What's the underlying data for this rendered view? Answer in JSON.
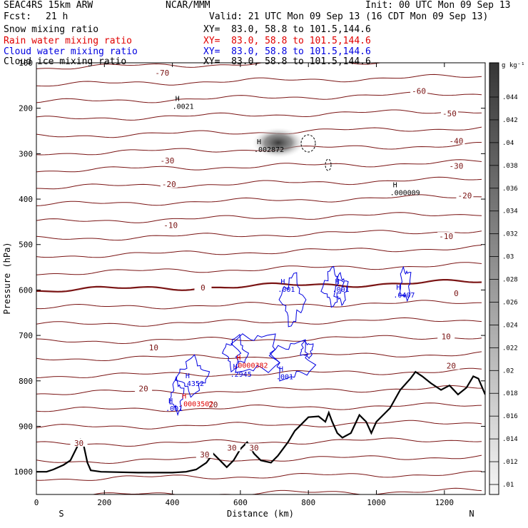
{
  "header": {
    "model": "SEAC4RS 15km ARW",
    "org": "NCAR/MMM",
    "init": "Init: 00 UTC Mon 09 Sep 13",
    "fcst_label": "Fcst:",
    "fcst_value": "21 h",
    "valid": "Valid: 21 UTC Mon 09 Sep 13 (16 CDT Mon 09 Sep 13)"
  },
  "fields": [
    {
      "name": "Snow mixing ratio",
      "xy": "XY=  83.0, 58.8 to 101.5,144.6",
      "color": "#000000"
    },
    {
      "name": "Rain water mixing ratio",
      "xy": "XY=  83.0, 58.8 to 101.5,144.6",
      "color": "#e00000"
    },
    {
      "name": "Cloud water mixing ratio",
      "xy": "XY=  83.0, 58.8 to 101.5,144.6",
      "color": "#0000e0"
    },
    {
      "name": "Cloud ice mixing ratio",
      "xy": "XY=  83.0, 58.8 to 101.5,144.6",
      "color": "#000000"
    }
  ],
  "chart_data": {
    "type": "contour_cross_section",
    "xlabel": "Distance (km)",
    "ylabel": "Pressure (hPa)",
    "xlim": [
      0,
      1320
    ],
    "ylim": [
      1050,
      100
    ],
    "x_ticks": [
      0,
      200,
      400,
      600,
      800,
      1000,
      1200
    ],
    "y_ticks": [
      1000,
      900,
      800,
      700,
      600,
      500,
      400,
      300,
      200,
      100
    ],
    "direction_left": "S",
    "direction_right": "N",
    "colorbar": {
      "unit": "g kg⁻¹",
      "ticks": [
        ".01",
        ".012",
        ".014",
        ".016",
        ".018",
        ".02",
        ".022",
        ".024",
        ".026",
        ".028",
        ".03",
        ".032",
        ".034",
        ".036",
        ".038",
        ".04",
        ".042",
        ".044"
      ]
    },
    "temperature_contours": {
      "color": "#7a1414",
      "labels": [
        {
          "text": "-70",
          "x": 370,
          "p": 125
        },
        {
          "text": "-60",
          "x": 1125,
          "p": 165
        },
        {
          "text": "-50",
          "x": 1215,
          "p": 215
        },
        {
          "text": "-40",
          "x": 1235,
          "p": 275
        },
        {
          "text": "-30",
          "x": 1235,
          "p": 330
        },
        {
          "text": "-30",
          "x": 385,
          "p": 318
        },
        {
          "text": "-20",
          "x": 390,
          "p": 370
        },
        {
          "text": "-20",
          "x": 1260,
          "p": 395
        },
        {
          "text": "-10",
          "x": 395,
          "p": 460
        },
        {
          "text": "-10",
          "x": 1205,
          "p": 485
        },
        {
          "text": "0",
          "x": 490,
          "p": 598
        },
        {
          "text": "0",
          "x": 1235,
          "p": 610
        },
        {
          "text": "10",
          "x": 345,
          "p": 730
        },
        {
          "text": "10",
          "x": 1205,
          "p": 705
        },
        {
          "text": "20",
          "x": 315,
          "p": 820
        },
        {
          "text": "20",
          "x": 520,
          "p": 855
        },
        {
          "text": "20",
          "x": 1220,
          "p": 770
        },
        {
          "text": "30",
          "x": 125,
          "p": 940
        },
        {
          "text": "30",
          "x": 495,
          "p": 965
        },
        {
          "text": "30",
          "x": 575,
          "p": 950
        },
        {
          "text": "30",
          "x": 640,
          "p": 950
        }
      ]
    },
    "terrain_profile": [
      [
        0,
        1000
      ],
      [
        30,
        1000
      ],
      [
        50,
        995
      ],
      [
        80,
        985
      ],
      [
        100,
        975
      ],
      [
        120,
        945
      ],
      [
        130,
        930
      ],
      [
        140,
        945
      ],
      [
        150,
        980
      ],
      [
        160,
        997
      ],
      [
        190,
        1000
      ],
      [
        300,
        1002
      ],
      [
        400,
        1002
      ],
      [
        440,
        1000
      ],
      [
        470,
        995
      ],
      [
        500,
        980
      ],
      [
        520,
        960
      ],
      [
        540,
        975
      ],
      [
        560,
        990
      ],
      [
        580,
        975
      ],
      [
        600,
        950
      ],
      [
        620,
        935
      ],
      [
        640,
        960
      ],
      [
        660,
        975
      ],
      [
        690,
        980
      ],
      [
        710,
        965
      ],
      [
        740,
        935
      ],
      [
        760,
        910
      ],
      [
        780,
        895
      ],
      [
        800,
        880
      ],
      [
        830,
        878
      ],
      [
        850,
        890
      ],
      [
        860,
        870
      ],
      [
        870,
        890
      ],
      [
        885,
        915
      ],
      [
        900,
        925
      ],
      [
        925,
        915
      ],
      [
        950,
        875
      ],
      [
        970,
        890
      ],
      [
        985,
        915
      ],
      [
        1000,
        890
      ],
      [
        1040,
        860
      ],
      [
        1070,
        820
      ],
      [
        1100,
        795
      ],
      [
        1115,
        780
      ],
      [
        1135,
        790
      ],
      [
        1160,
        805
      ],
      [
        1190,
        820
      ],
      [
        1215,
        810
      ],
      [
        1240,
        830
      ],
      [
        1265,
        815
      ],
      [
        1285,
        790
      ],
      [
        1300,
        795
      ],
      [
        1320,
        830
      ]
    ],
    "maxima_labels": [
      {
        "text": ".0021",
        "x": 400,
        "p": 195,
        "color": "#000000"
      },
      {
        "text": ".002872",
        "x": 640,
        "p": 290,
        "color": "#000000"
      },
      {
        "text": ".000009",
        "x": 1040,
        "p": 385,
        "color": "#000000"
      },
      {
        "text": ".0407",
        "x": 1050,
        "p": 610,
        "color": "#0000e0"
      },
      {
        "text": ".001",
        "x": 710,
        "p": 598,
        "color": "#0000e0"
      },
      {
        "text": ".001",
        "x": 870,
        "p": 598,
        "color": "#0000e0"
      },
      {
        "text": ".0000382",
        "x": 580,
        "p": 765,
        "color": "#e00000"
      },
      {
        "text": ".2945",
        "x": 570,
        "p": 785,
        "color": "#0000e0"
      },
      {
        "text": ".001",
        "x": 705,
        "p": 790,
        "color": "#0000e0"
      },
      {
        "text": ".4352",
        "x": 430,
        "p": 805,
        "color": "#0000e0"
      },
      {
        "text": ".0003502",
        "x": 420,
        "p": 850,
        "color": "#e00000"
      },
      {
        "text": ".001",
        "x": 380,
        "p": 860,
        "color": "#0000e0"
      }
    ],
    "max_marker": "H"
  }
}
